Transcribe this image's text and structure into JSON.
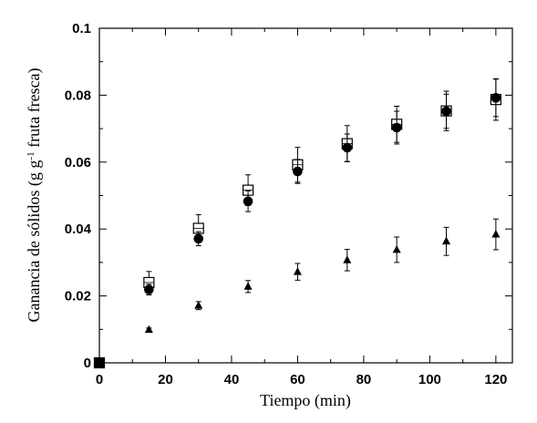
{
  "chart_data": {
    "type": "scatter",
    "title": "",
    "xlabel": "Tiempo (min)",
    "ylabel": {
      "prefix": "Ganancia de sólidos (g g",
      "superscript": "-1",
      "suffix": " fruta fresca)"
    },
    "xlim": [
      0,
      125
    ],
    "ylim": [
      0,
      0.1
    ],
    "xticks": [
      "0",
      "20",
      "40",
      "60",
      "80",
      "100",
      "120"
    ],
    "yticks": [
      "0",
      "0.02",
      "0.04",
      "0.06",
      "0.08",
      "0.1"
    ],
    "grid": false,
    "legend": "none",
    "series": [
      {
        "marker": "square-open",
        "x": [
          0,
          15,
          30,
          45,
          60,
          75,
          90,
          105,
          120
        ],
        "y": [
          0,
          0.024,
          0.0402,
          0.0516,
          0.0592,
          0.0655,
          0.0713,
          0.0753,
          0.0787
        ],
        "err": [
          0,
          0.0033,
          0.0041,
          0.0046,
          0.0052,
          0.0054,
          0.0054,
          0.0059,
          0.0062
        ]
      },
      {
        "marker": "circle-filled",
        "x": [
          0,
          15,
          30,
          45,
          60,
          75,
          90,
          105,
          120
        ],
        "y": [
          0,
          0.0219,
          0.0371,
          0.0483,
          0.0572,
          0.0643,
          0.0703,
          0.0752,
          0.0792
        ],
        "err": [
          0,
          0.0016,
          0.0021,
          0.0031,
          0.0036,
          0.0041,
          0.0049,
          0.0051,
          0.0056
        ]
      },
      {
        "marker": "triangle-filled",
        "x": [
          0,
          15,
          30,
          45,
          60,
          75,
          90,
          105,
          120
        ],
        "y": [
          0,
          0.0099,
          0.0171,
          0.0228,
          0.0272,
          0.0307,
          0.0338,
          0.0363,
          0.0384
        ],
        "err": [
          0,
          0.0005,
          0.0012,
          0.0018,
          0.0025,
          0.0032,
          0.0038,
          0.0042,
          0.0046
        ]
      }
    ]
  }
}
